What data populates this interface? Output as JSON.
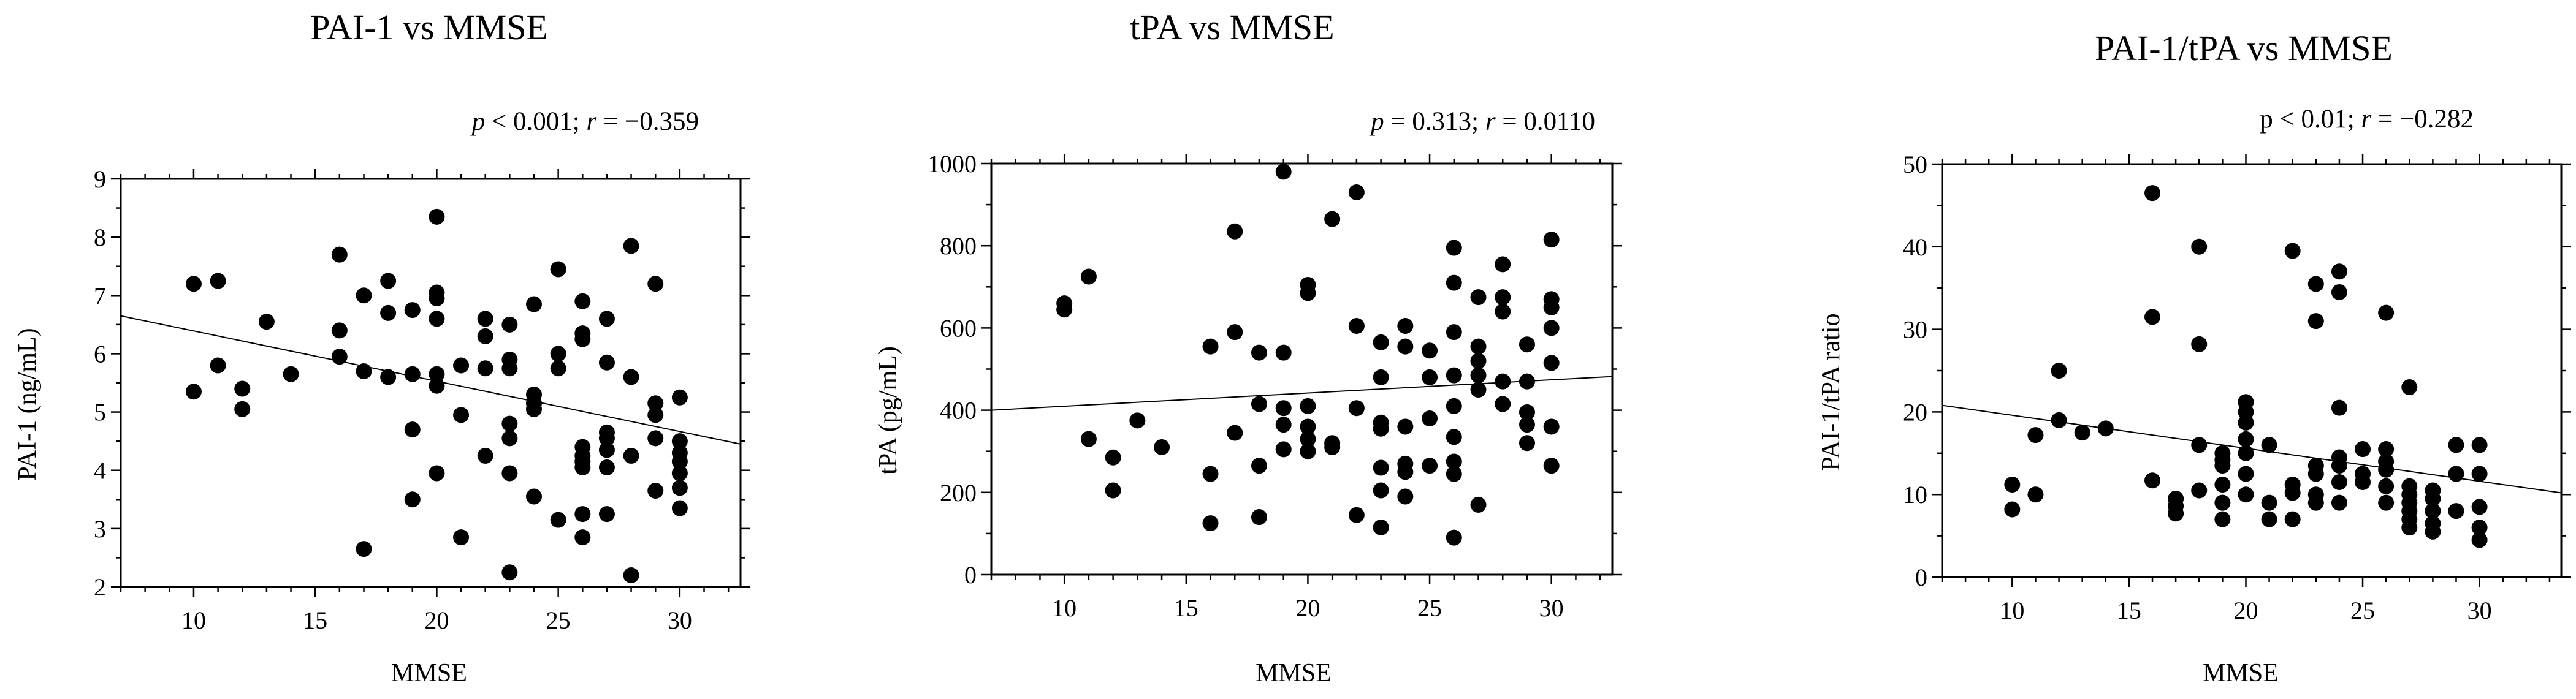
{
  "chart_data": [
    {
      "type": "scatter",
      "title": "PAI-1 vs MMSE",
      "stat": {
        "p_symbol": "p",
        "p_text": " < 0.001; ",
        "r_symbol": "r",
        "r_text": " = −0.359"
      },
      "xlabel": "MMSE",
      "ylabel": "PAI-1 (ng/mL)",
      "xlim": [
        7,
        32.5
      ],
      "ylim": [
        2,
        9
      ],
      "xticks": [
        10,
        15,
        20,
        25,
        30
      ],
      "yticks": [
        2,
        3,
        4,
        5,
        6,
        7,
        8,
        9
      ],
      "trendline": [
        [
          7,
          6.65
        ],
        [
          32.5,
          4.45
        ]
      ],
      "points": [
        [
          10,
          7.2
        ],
        [
          10,
          5.35
        ],
        [
          11,
          7.25
        ],
        [
          11,
          5.8
        ],
        [
          12,
          5.4
        ],
        [
          12,
          5.05
        ],
        [
          13,
          6.55
        ],
        [
          14,
          5.65
        ],
        [
          16,
          7.7
        ],
        [
          16,
          6.4
        ],
        [
          16,
          5.95
        ],
        [
          17,
          7.0
        ],
        [
          17,
          5.7
        ],
        [
          17,
          2.65
        ],
        [
          18,
          7.25
        ],
        [
          18,
          6.7
        ],
        [
          18,
          5.6
        ],
        [
          19,
          6.75
        ],
        [
          19,
          5.65
        ],
        [
          19,
          4.7
        ],
        [
          19,
          3.5
        ],
        [
          20,
          8.35
        ],
        [
          20,
          7.05
        ],
        [
          20,
          6.95
        ],
        [
          20,
          6.6
        ],
        [
          20,
          5.65
        ],
        [
          20,
          5.45
        ],
        [
          20,
          3.95
        ],
        [
          21,
          5.8
        ],
        [
          21,
          4.95
        ],
        [
          21,
          2.85
        ],
        [
          22,
          6.6
        ],
        [
          22,
          6.3
        ],
        [
          22,
          5.75
        ],
        [
          22,
          4.25
        ],
        [
          23,
          6.5
        ],
        [
          23,
          5.9
        ],
        [
          23,
          5.75
        ],
        [
          23,
          4.8
        ],
        [
          23,
          4.55
        ],
        [
          23,
          3.95
        ],
        [
          23,
          2.25
        ],
        [
          24,
          6.85
        ],
        [
          24,
          5.3
        ],
        [
          24,
          5.15
        ],
        [
          24,
          5.05
        ],
        [
          24,
          3.55
        ],
        [
          25,
          7.45
        ],
        [
          25,
          6.0
        ],
        [
          25,
          5.75
        ],
        [
          25,
          3.15
        ],
        [
          26,
          6.9
        ],
        [
          26,
          6.35
        ],
        [
          26,
          6.25
        ],
        [
          26,
          4.4
        ],
        [
          26,
          4.25
        ],
        [
          26,
          4.15
        ],
        [
          26,
          4.05
        ],
        [
          26,
          3.25
        ],
        [
          26,
          2.85
        ],
        [
          27,
          6.6
        ],
        [
          27,
          5.85
        ],
        [
          27,
          4.65
        ],
        [
          27,
          4.55
        ],
        [
          27,
          4.35
        ],
        [
          27,
          4.05
        ],
        [
          27,
          3.25
        ],
        [
          28,
          7.85
        ],
        [
          28,
          5.6
        ],
        [
          28,
          4.25
        ],
        [
          28,
          2.2
        ],
        [
          29,
          7.2
        ],
        [
          29,
          5.15
        ],
        [
          29,
          4.95
        ],
        [
          29,
          4.55
        ],
        [
          29,
          3.65
        ],
        [
          30,
          5.25
        ],
        [
          30,
          4.5
        ],
        [
          30,
          4.3
        ],
        [
          30,
          4.15
        ],
        [
          30,
          3.95
        ],
        [
          30,
          3.7
        ],
        [
          30,
          3.35
        ]
      ]
    },
    {
      "type": "scatter",
      "title": "tPA vs MMSE",
      "stat": {
        "p_symbol": "p",
        "p_text": " = 0.313; ",
        "r_symbol": "r",
        "r_text": " = 0.0110"
      },
      "xlabel": "MMSE",
      "ylabel": "tPA (pg/mL)",
      "xlim": [
        7,
        32.5
      ],
      "ylim": [
        0,
        1000
      ],
      "xticks": [
        10,
        15,
        20,
        25,
        30
      ],
      "yticks": [
        0,
        200,
        400,
        600,
        800,
        1000
      ],
      "trendline": [
        [
          7,
          400
        ],
        [
          32.5,
          482
        ]
      ],
      "points": [
        [
          10,
          660
        ],
        [
          10,
          645
        ],
        [
          11,
          725
        ],
        [
          11,
          330
        ],
        [
          12,
          285
        ],
        [
          12,
          205
        ],
        [
          13,
          375
        ],
        [
          14,
          310
        ],
        [
          16,
          555
        ],
        [
          16,
          245
        ],
        [
          16,
          125
        ],
        [
          17,
          835
        ],
        [
          17,
          590
        ],
        [
          17,
          345
        ],
        [
          18,
          540
        ],
        [
          18,
          415
        ],
        [
          18,
          265
        ],
        [
          18,
          140
        ],
        [
          19,
          980
        ],
        [
          19,
          540
        ],
        [
          19,
          405
        ],
        [
          19,
          365
        ],
        [
          19,
          305
        ],
        [
          20,
          705
        ],
        [
          20,
          685
        ],
        [
          20,
          410
        ],
        [
          20,
          360
        ],
        [
          20,
          330
        ],
        [
          20,
          300
        ],
        [
          21,
          865
        ],
        [
          21,
          320
        ],
        [
          21,
          310
        ],
        [
          22,
          930
        ],
        [
          22,
          605
        ],
        [
          22,
          405
        ],
        [
          22,
          145
        ],
        [
          23,
          565
        ],
        [
          23,
          480
        ],
        [
          23,
          370
        ],
        [
          23,
          355
        ],
        [
          23,
          260
        ],
        [
          23,
          205
        ],
        [
          23,
          115
        ],
        [
          24,
          605
        ],
        [
          24,
          555
        ],
        [
          24,
          360
        ],
        [
          24,
          270
        ],
        [
          24,
          250
        ],
        [
          24,
          190
        ],
        [
          25,
          545
        ],
        [
          25,
          480
        ],
        [
          25,
          265
        ],
        [
          25,
          380
        ],
        [
          26,
          795
        ],
        [
          26,
          710
        ],
        [
          26,
          590
        ],
        [
          26,
          485
        ],
        [
          26,
          410
        ],
        [
          26,
          335
        ],
        [
          26,
          275
        ],
        [
          26,
          245
        ],
        [
          26,
          90
        ],
        [
          27,
          675
        ],
        [
          27,
          555
        ],
        [
          27,
          520
        ],
        [
          27,
          485
        ],
        [
          27,
          450
        ],
        [
          27,
          170
        ],
        [
          28,
          755
        ],
        [
          28,
          675
        ],
        [
          28,
          640
        ],
        [
          28,
          415
        ],
        [
          28,
          470
        ],
        [
          29,
          560
        ],
        [
          29,
          470
        ],
        [
          29,
          395
        ],
        [
          29,
          365
        ],
        [
          29,
          320
        ],
        [
          30,
          815
        ],
        [
          30,
          670
        ],
        [
          30,
          650
        ],
        [
          30,
          600
        ],
        [
          30,
          515
        ],
        [
          30,
          360
        ],
        [
          30,
          265
        ]
      ]
    },
    {
      "type": "scatter",
      "title": "PAI-1/tPA vs MMSE",
      "stat": {
        "p_symbol": "",
        "p_text": "p < 0.01; ",
        "r_symbol": "r",
        "r_text": " = −0.282"
      },
      "xlabel": "MMSE",
      "ylabel": "PAI-1/tPA ratio",
      "xlim": [
        7,
        33.5
      ],
      "ylim": [
        0,
        50
      ],
      "xticks": [
        10,
        15,
        20,
        25,
        30
      ],
      "yticks": [
        0,
        10,
        20,
        30,
        40,
        50
      ],
      "trendline": [
        [
          7,
          20.8
        ],
        [
          33.5,
          10.2
        ]
      ],
      "points": [
        [
          10,
          11.2
        ],
        [
          10,
          8.2
        ],
        [
          11,
          17.2
        ],
        [
          11,
          10.0
        ],
        [
          12,
          25.0
        ],
        [
          12,
          19.0
        ],
        [
          13,
          17.5
        ],
        [
          14,
          18.0
        ],
        [
          16,
          46.5
        ],
        [
          16,
          31.5
        ],
        [
          16,
          11.7
        ],
        [
          17,
          9.5
        ],
        [
          17,
          8.6
        ],
        [
          17,
          7.7
        ],
        [
          18,
          40.0
        ],
        [
          18,
          28.2
        ],
        [
          18,
          16.0
        ],
        [
          18,
          10.5
        ],
        [
          19,
          15.0
        ],
        [
          19,
          14.2
        ],
        [
          19,
          13.5
        ],
        [
          19,
          11.2
        ],
        [
          19,
          9.0
        ],
        [
          19,
          7.0
        ],
        [
          20,
          21.2
        ],
        [
          20,
          20.0
        ],
        [
          20,
          18.7
        ],
        [
          20,
          16.7
        ],
        [
          20,
          15.0
        ],
        [
          20,
          12.5
        ],
        [
          20,
          10.0
        ],
        [
          21,
          16.0
        ],
        [
          21,
          9.0
        ],
        [
          21,
          7.0
        ],
        [
          22,
          39.5
        ],
        [
          22,
          11.2
        ],
        [
          22,
          10.2
        ],
        [
          22,
          7.0
        ],
        [
          23,
          35.5
        ],
        [
          23,
          31.0
        ],
        [
          23,
          13.5
        ],
        [
          23,
          12.5
        ],
        [
          23,
          10.0
        ],
        [
          23,
          9.0
        ],
        [
          24,
          37.0
        ],
        [
          24,
          34.5
        ],
        [
          24,
          20.5
        ],
        [
          24,
          14.5
        ],
        [
          24,
          13.5
        ],
        [
          24,
          11.5
        ],
        [
          24,
          9.0
        ],
        [
          25,
          15.5
        ],
        [
          25,
          12.5
        ],
        [
          25,
          11.5
        ],
        [
          26,
          32.0
        ],
        [
          26,
          15.5
        ],
        [
          26,
          14.0
        ],
        [
          26,
          13.0
        ],
        [
          26,
          11.0
        ],
        [
          26,
          9.0
        ],
        [
          27,
          23.0
        ],
        [
          27,
          11.0
        ],
        [
          27,
          10.0
        ],
        [
          27,
          9.0
        ],
        [
          27,
          8.0
        ],
        [
          27,
          7.0
        ],
        [
          27,
          6.0
        ],
        [
          28,
          10.5
        ],
        [
          28,
          9.5
        ],
        [
          28,
          8.0
        ],
        [
          28,
          6.5
        ],
        [
          28,
          5.5
        ],
        [
          29,
          16.0
        ],
        [
          29,
          12.5
        ],
        [
          29,
          8.0
        ],
        [
          30,
          16.0
        ],
        [
          30,
          12.5
        ],
        [
          30,
          8.5
        ],
        [
          30,
          6.0
        ],
        [
          30,
          4.5
        ]
      ]
    }
  ]
}
